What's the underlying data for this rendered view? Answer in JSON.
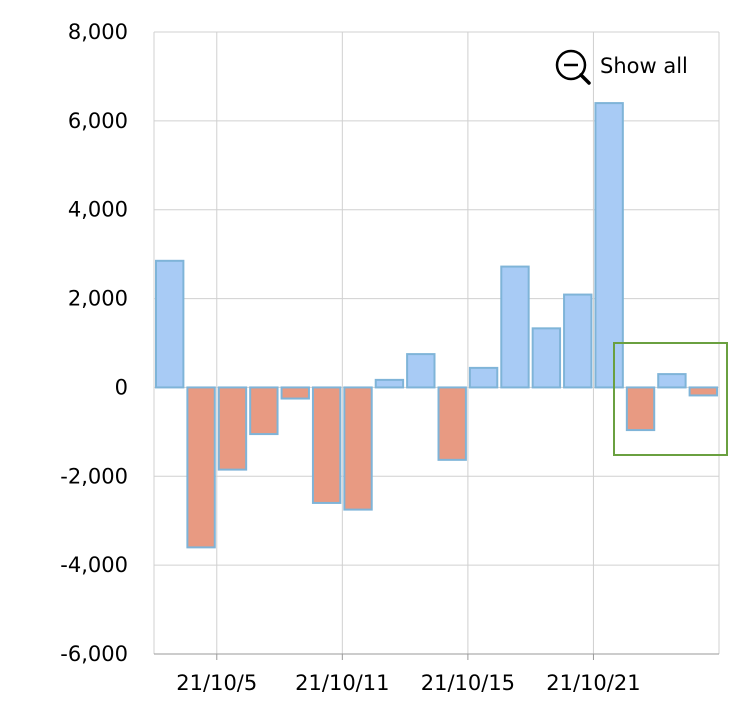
{
  "chart_data": {
    "type": "bar",
    "x_tick_labels": [
      "21/10/5",
      "21/10/11",
      "21/10/15",
      "21/10/21"
    ],
    "values": [
      2850,
      -3600,
      -1850,
      -1050,
      -250,
      -2600,
      -2750,
      170,
      750,
      -1630,
      440,
      2720,
      1330,
      2090,
      6400,
      -960,
      300,
      -180
    ],
    "ylim": [
      -6000,
      8000
    ],
    "y_ticks": [
      -6000,
      -4000,
      -2000,
      0,
      2000,
      4000,
      6000,
      8000
    ],
    "y_tick_labels": [
      "-6,000",
      "-4,000",
      "-2,000",
      "0",
      "2,000",
      "4,000",
      "6,000",
      "8,000"
    ],
    "grid": true,
    "colors": {
      "positive_fill": "#a8cbf5",
      "positive_stroke": "#7fb4d8",
      "negative_fill": "#e89a82",
      "negative_stroke": "#7fb4d8",
      "grid": "#d0d0d0",
      "axis": "#999999",
      "selection": "#6aa040"
    }
  },
  "controls": {
    "show_all_label": "Show all",
    "show_all_icon": "zoom-out-icon"
  }
}
